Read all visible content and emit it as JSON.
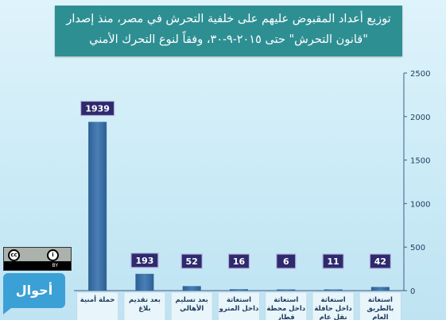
{
  "chart_data": {
    "type": "bar",
    "title": "توزيع أعداد المقبوض عليهم على خلفية التحرش في مصر، منذ إصدار \"قانون التحرش\" حتى ٢٠١٥-٩-٣٠، وفقاً لنوع التحرك الأمني",
    "categories": [
      "حملة أمنية",
      "بعد تقديم بلاغ",
      "بعد تسليم الأهالي",
      "استغاثة داخل المترو",
      "استغاثة داخل محطة قطار",
      "استغاثة داخل حافلة نقل عام",
      "استغاثة بالطريق العام"
    ],
    "values": [
      1939,
      193,
      52,
      16,
      6,
      11,
      42
    ],
    "ylim": [
      0,
      2500
    ],
    "yticks": [
      0,
      500,
      1000,
      1500,
      2000,
      2500
    ],
    "y_axis_side": "right",
    "grid": false,
    "bar_color": "#3d6fa3",
    "label_box_color": "#2e2a6e"
  },
  "logo": {
    "text": "أحوال"
  },
  "license": {
    "by_label": "BY"
  }
}
